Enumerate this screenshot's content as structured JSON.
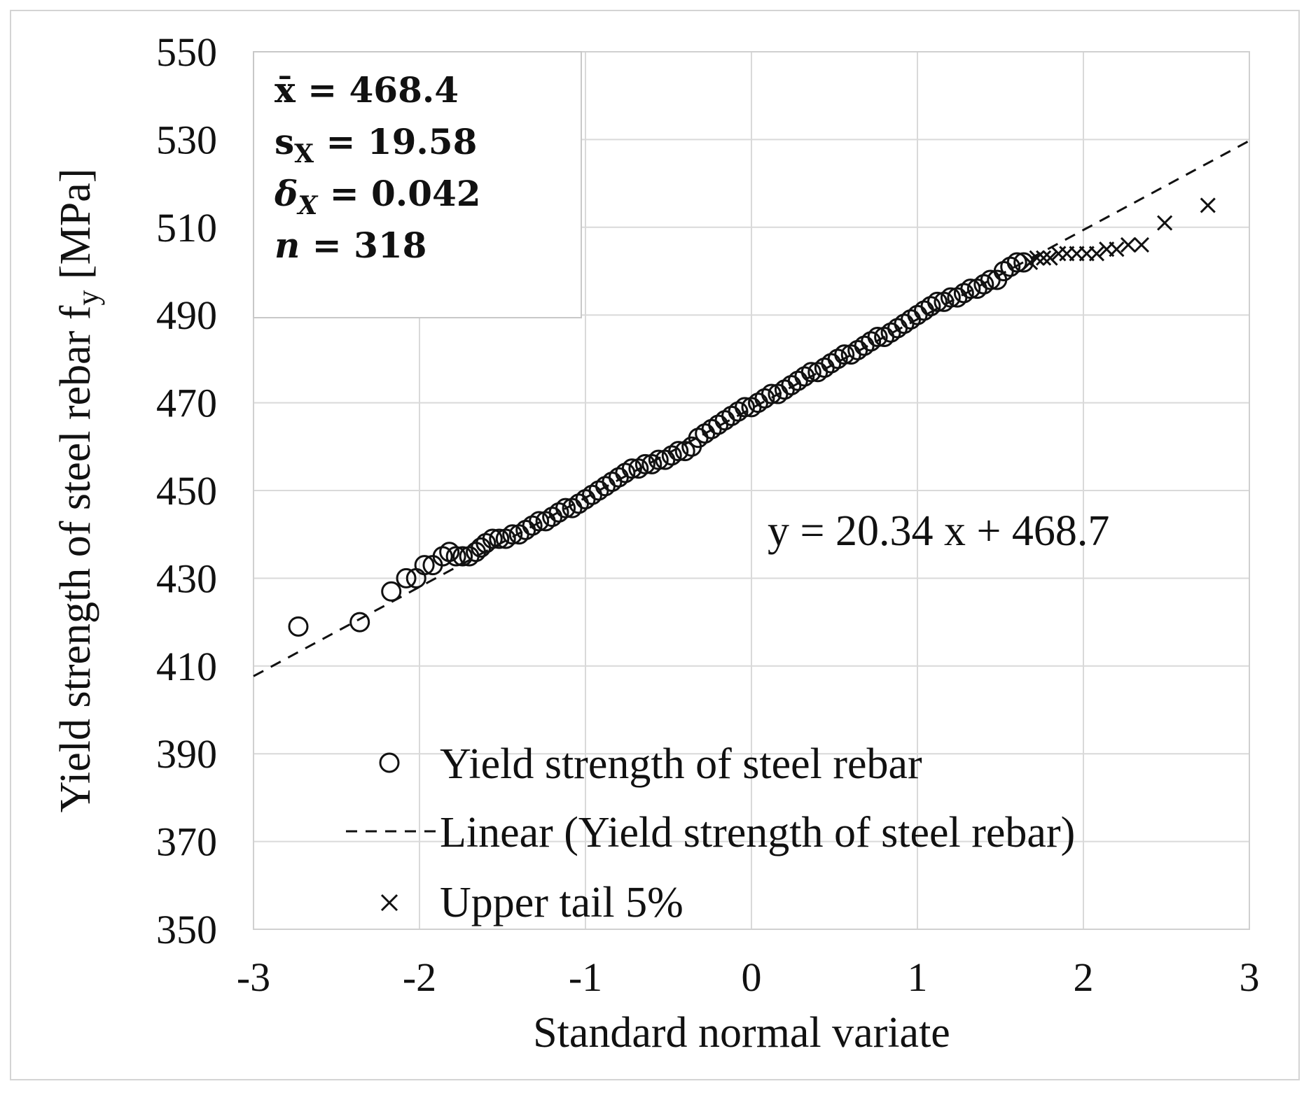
{
  "chart_data": {
    "type": "scatter",
    "title": "",
    "xlabel": "Standard normal variate",
    "ylabel": "Yield strength of steel rebar f",
    "ylabel_sub": "y",
    "ylabel_unit": " [MPa]",
    "xlim": [
      -3,
      3
    ],
    "ylim": [
      350,
      550
    ],
    "xticks": [
      -3,
      -2,
      -1,
      0,
      1,
      2,
      3
    ],
    "yticks": [
      350,
      370,
      390,
      410,
      430,
      450,
      470,
      490,
      510,
      530,
      550
    ],
    "grid": true,
    "stats_box": {
      "mean_label": "x̄ = 468.4",
      "sd_sym": "s",
      "sd_sub": "X",
      "sd_val": " = 19.58",
      "cov_sym": "δ",
      "cov_sub": "X",
      "cov_val": " = 0.042",
      "n_sym": "n",
      "n_val": " = 318"
    },
    "trendline": {
      "name": "Linear (Yield strength of steel rebar)",
      "slope": 20.34,
      "intercept": 468.7,
      "equation": "y = 20.34 x + 468.7",
      "color": "#111111"
    },
    "series": [
      {
        "name": "Yield strength of steel rebar",
        "marker": "circle",
        "points": [
          [
            -2.73,
            419
          ],
          [
            -2.36,
            420
          ],
          [
            -2.17,
            427
          ],
          [
            -2.08,
            430
          ],
          [
            -2.02,
            430
          ],
          [
            -1.97,
            433
          ],
          [
            -1.92,
            433
          ],
          [
            -1.86,
            435
          ],
          [
            -1.82,
            436
          ],
          [
            -1.78,
            435
          ],
          [
            -1.74,
            435
          ],
          [
            -1.7,
            435
          ],
          [
            -1.66,
            436
          ],
          [
            -1.63,
            437
          ],
          [
            -1.6,
            438
          ],
          [
            -1.56,
            439
          ],
          [
            -1.52,
            439
          ],
          [
            -1.48,
            439
          ],
          [
            -1.44,
            440
          ],
          [
            -1.4,
            440
          ],
          [
            -1.36,
            441
          ],
          [
            -1.32,
            442
          ],
          [
            -1.28,
            443
          ],
          [
            -1.24,
            443
          ],
          [
            -1.2,
            444
          ],
          [
            -1.16,
            445
          ],
          [
            -1.12,
            446
          ],
          [
            -1.08,
            446
          ],
          [
            -1.04,
            447
          ],
          [
            -1.0,
            448
          ],
          [
            -0.96,
            449
          ],
          [
            -0.92,
            450
          ],
          [
            -0.88,
            451
          ],
          [
            -0.84,
            452
          ],
          [
            -0.8,
            453
          ],
          [
            -0.76,
            454
          ],
          [
            -0.72,
            455
          ],
          [
            -0.68,
            455
          ],
          [
            -0.64,
            456
          ],
          [
            -0.6,
            456
          ],
          [
            -0.56,
            457
          ],
          [
            -0.52,
            457
          ],
          [
            -0.48,
            458
          ],
          [
            -0.44,
            459
          ],
          [
            -0.4,
            459
          ],
          [
            -0.36,
            460
          ],
          [
            -0.32,
            462
          ],
          [
            -0.28,
            463
          ],
          [
            -0.24,
            464
          ],
          [
            -0.2,
            465
          ],
          [
            -0.16,
            466
          ],
          [
            -0.12,
            467
          ],
          [
            -0.08,
            468
          ],
          [
            -0.04,
            469
          ],
          [
            0.0,
            469
          ],
          [
            0.04,
            470
          ],
          [
            0.08,
            471
          ],
          [
            0.12,
            472
          ],
          [
            0.16,
            472
          ],
          [
            0.2,
            473
          ],
          [
            0.24,
            474
          ],
          [
            0.28,
            475
          ],
          [
            0.32,
            476
          ],
          [
            0.36,
            477
          ],
          [
            0.4,
            477
          ],
          [
            0.44,
            478
          ],
          [
            0.48,
            479
          ],
          [
            0.52,
            480
          ],
          [
            0.56,
            481
          ],
          [
            0.6,
            481
          ],
          [
            0.64,
            482
          ],
          [
            0.68,
            483
          ],
          [
            0.72,
            484
          ],
          [
            0.76,
            485
          ],
          [
            0.8,
            485
          ],
          [
            0.84,
            486
          ],
          [
            0.88,
            487
          ],
          [
            0.92,
            488
          ],
          [
            0.96,
            489
          ],
          [
            1.0,
            490
          ],
          [
            1.04,
            491
          ],
          [
            1.08,
            492
          ],
          [
            1.12,
            493
          ],
          [
            1.16,
            493
          ],
          [
            1.2,
            494
          ],
          [
            1.24,
            494
          ],
          [
            1.28,
            495
          ],
          [
            1.32,
            496
          ],
          [
            1.36,
            496
          ],
          [
            1.4,
            497
          ],
          [
            1.44,
            498
          ],
          [
            1.48,
            498
          ],
          [
            1.52,
            500
          ],
          [
            1.56,
            501
          ],
          [
            1.6,
            502
          ],
          [
            1.64,
            502
          ]
        ]
      },
      {
        "name": "Upper tail 5%",
        "marker": "x",
        "points": [
          [
            1.68,
            502
          ],
          [
            1.72,
            503
          ],
          [
            1.76,
            503
          ],
          [
            1.8,
            503
          ],
          [
            1.85,
            504
          ],
          [
            1.9,
            504
          ],
          [
            1.96,
            504
          ],
          [
            2.02,
            504
          ],
          [
            2.08,
            504
          ],
          [
            2.14,
            505
          ],
          [
            2.2,
            505
          ],
          [
            2.27,
            506
          ],
          [
            2.35,
            506
          ],
          [
            2.49,
            511
          ],
          [
            2.75,
            515
          ]
        ]
      }
    ],
    "legend": {
      "position": "bottom-left",
      "entries": [
        {
          "label": "Yield strength of steel rebar",
          "marker": "circle"
        },
        {
          "label": "Linear (Yield strength of steel rebar)",
          "marker": "dash"
        },
        {
          "label": "Upper tail 5%",
          "marker": "x"
        }
      ]
    }
  }
}
